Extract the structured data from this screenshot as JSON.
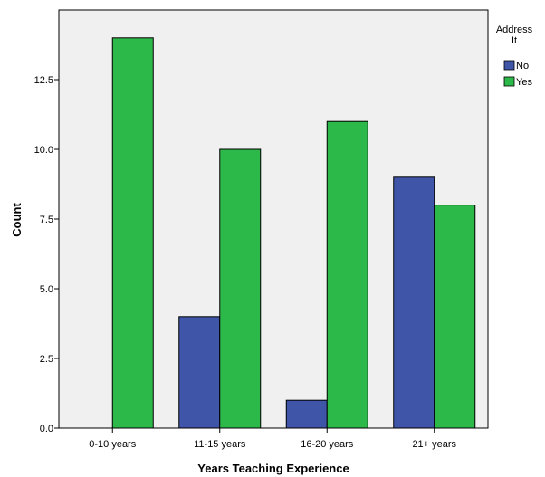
{
  "chart_data": {
    "type": "bar",
    "title": "",
    "xlabel": "Years Teaching Experience",
    "ylabel": "Count",
    "categories": [
      "0-10 years",
      "11-15 years",
      "16-20 years",
      "21+ years"
    ],
    "series": [
      {
        "name": "No",
        "color": "#3f55a8",
        "values": [
          0,
          4,
          1,
          9
        ]
      },
      {
        "name": "Yes",
        "color": "#2db84a",
        "values": [
          14,
          10,
          11,
          8
        ]
      }
    ],
    "ylim": [
      0,
      15
    ],
    "yticks": [
      "0.0",
      "2.5",
      "5.0",
      "7.5",
      "10.0",
      "12.5"
    ],
    "grid": false,
    "plot_background": "#f0f0f0",
    "legend": {
      "title_lines": [
        "Address",
        "It"
      ],
      "placement": "top-right, outside plot"
    }
  }
}
